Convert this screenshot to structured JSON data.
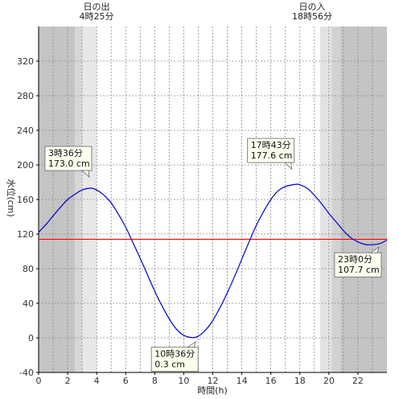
{
  "chart_data": {
    "type": "line",
    "xlabel": "時間(h)",
    "ylabel": "水位(cm)",
    "xlim": [
      0,
      24
    ],
    "ylim": [
      -40,
      360
    ],
    "x_ticks": [
      0,
      2,
      4,
      6,
      8,
      10,
      12,
      14,
      16,
      18,
      20,
      22
    ],
    "y_ticks": [
      -40,
      0,
      40,
      80,
      120,
      160,
      200,
      240,
      280,
      320
    ],
    "grid": true,
    "reference_line": {
      "value": 114,
      "color": "#ff0000"
    },
    "line_color": "#0000cc",
    "sunrise": {
      "label": "日の出",
      "time": "4時25分",
      "hour": 4.417
    },
    "sunset": {
      "label": "日の入",
      "time": "18時56分",
      "hour": 18.933
    },
    "twilight_bands": [
      {
        "from": 0,
        "to": 2.5,
        "shade": "#c4c4c4"
      },
      {
        "from": 2.5,
        "to": 3.0,
        "shade": "#d6d6d6"
      },
      {
        "from": 3.0,
        "to": 4.0,
        "shade": "#e8e8e8"
      },
      {
        "from": 19.4,
        "to": 20.2,
        "shade": "#e2e2e2"
      },
      {
        "from": 20.2,
        "to": 20.8,
        "shade": "#d2d2d2"
      },
      {
        "from": 20.8,
        "to": 24,
        "shade": "#c4c4c4"
      }
    ],
    "x": [
      0,
      0.5,
      1,
      1.5,
      2,
      2.5,
      3,
      3.6,
      4,
      4.5,
      5,
      5.5,
      6,
      6.5,
      7,
      7.5,
      8,
      8.5,
      9,
      9.5,
      10,
      10.6,
      11,
      11.5,
      12,
      12.5,
      13,
      13.5,
      14,
      14.5,
      15,
      15.5,
      16,
      16.5,
      17,
      17.72,
      18,
      18.5,
      19,
      19.5,
      20,
      20.5,
      21,
      21.5,
      22,
      22.5,
      23,
      23.5,
      24
    ],
    "values": [
      122,
      131,
      141,
      151,
      160,
      166,
      171,
      173,
      171,
      165,
      156,
      143,
      128,
      110,
      92,
      73,
      54,
      37,
      22,
      10,
      3,
      0.3,
      2,
      9,
      20,
      35,
      52,
      71,
      91,
      111,
      130,
      146,
      160,
      170,
      175,
      177.6,
      177,
      173,
      165,
      155,
      144,
      134,
      124,
      116,
      111,
      108,
      107.7,
      109,
      113
    ],
    "annotations": [
      {
        "time": "3時36分",
        "value": "173.0 cm",
        "hour": 3.6,
        "level": 173.0
      },
      {
        "time": "10時36分",
        "value": "0.3 cm",
        "hour": 10.6,
        "level": 0.3
      },
      {
        "time": "17時43分",
        "value": "177.6 cm",
        "hour": 17.72,
        "level": 177.6
      },
      {
        "time": "23時0分",
        "value": "107.7 cm",
        "hour": 23.0,
        "level": 107.7
      }
    ]
  }
}
